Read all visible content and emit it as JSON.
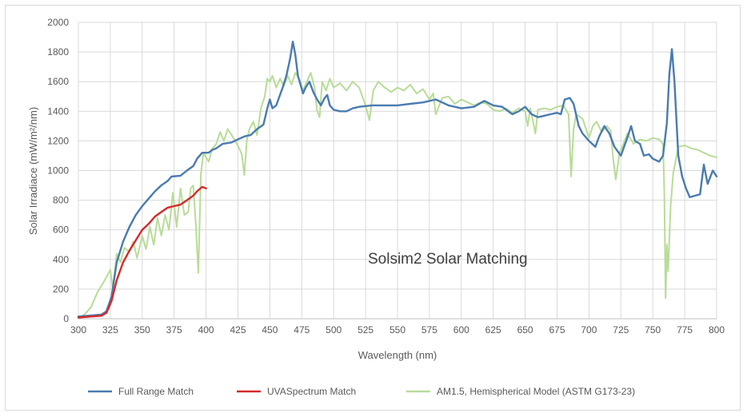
{
  "chart_data": {
    "type": "line",
    "title": "",
    "annotation": "Solsim2 Solar Matching",
    "xlabel": "Wavelength (nm)",
    "ylabel": "Solar Irradiace (mW/m²/nm)",
    "xlim": [
      300,
      800
    ],
    "ylim": [
      0,
      2000
    ],
    "x_ticks": [
      300,
      325,
      350,
      375,
      400,
      425,
      450,
      475,
      500,
      525,
      550,
      575,
      600,
      625,
      650,
      675,
      700,
      725,
      750,
      775,
      800
    ],
    "y_ticks": [
      0,
      200,
      400,
      600,
      800,
      1000,
      1200,
      1400,
      1600,
      1800,
      2000
    ],
    "grid": true,
    "legend_position": "bottom",
    "series": [
      {
        "name": "Full Range Match",
        "color": "#4a7bb0",
        "points": [
          [
            300,
            15
          ],
          [
            310,
            22
          ],
          [
            318,
            28
          ],
          [
            322,
            50
          ],
          [
            326,
            150
          ],
          [
            330,
            380
          ],
          [
            335,
            520
          ],
          [
            340,
            620
          ],
          [
            345,
            700
          ],
          [
            350,
            760
          ],
          [
            355,
            810
          ],
          [
            360,
            860
          ],
          [
            365,
            900
          ],
          [
            370,
            930
          ],
          [
            373,
            960
          ],
          [
            380,
            965
          ],
          [
            385,
            1000
          ],
          [
            390,
            1030
          ],
          [
            393,
            1080
          ],
          [
            397,
            1120
          ],
          [
            402,
            1120
          ],
          [
            405,
            1140
          ],
          [
            408,
            1150
          ],
          [
            413,
            1180
          ],
          [
            420,
            1190
          ],
          [
            425,
            1210
          ],
          [
            430,
            1230
          ],
          [
            435,
            1240
          ],
          [
            440,
            1280
          ],
          [
            445,
            1310
          ],
          [
            448,
            1420
          ],
          [
            450,
            1480
          ],
          [
            452,
            1420
          ],
          [
            455,
            1440
          ],
          [
            460,
            1560
          ],
          [
            463,
            1640
          ],
          [
            466,
            1760
          ],
          [
            468,
            1870
          ],
          [
            470,
            1780
          ],
          [
            472,
            1640
          ],
          [
            474,
            1580
          ],
          [
            476,
            1520
          ],
          [
            478,
            1560
          ],
          [
            481,
            1600
          ],
          [
            484,
            1530
          ],
          [
            487,
            1480
          ],
          [
            490,
            1440
          ],
          [
            493,
            1490
          ],
          [
            495,
            1510
          ],
          [
            497,
            1440
          ],
          [
            500,
            1410
          ],
          [
            505,
            1400
          ],
          [
            510,
            1400
          ],
          [
            515,
            1420
          ],
          [
            520,
            1430
          ],
          [
            530,
            1440
          ],
          [
            540,
            1440
          ],
          [
            550,
            1440
          ],
          [
            560,
            1450
          ],
          [
            570,
            1460
          ],
          [
            580,
            1480
          ],
          [
            590,
            1440
          ],
          [
            600,
            1420
          ],
          [
            610,
            1430
          ],
          [
            618,
            1470
          ],
          [
            625,
            1440
          ],
          [
            632,
            1430
          ],
          [
            640,
            1380
          ],
          [
            645,
            1400
          ],
          [
            650,
            1430
          ],
          [
            655,
            1380
          ],
          [
            660,
            1360
          ],
          [
            665,
            1370
          ],
          [
            670,
            1380
          ],
          [
            675,
            1390
          ],
          [
            678,
            1380
          ],
          [
            681,
            1480
          ],
          [
            685,
            1490
          ],
          [
            688,
            1450
          ],
          [
            692,
            1300
          ],
          [
            695,
            1250
          ],
          [
            700,
            1200
          ],
          [
            705,
            1160
          ],
          [
            708,
            1230
          ],
          [
            712,
            1300
          ],
          [
            716,
            1250
          ],
          [
            720,
            1160
          ],
          [
            725,
            1100
          ],
          [
            730,
            1220
          ],
          [
            733,
            1300
          ],
          [
            736,
            1200
          ],
          [
            740,
            1180
          ],
          [
            743,
            1100
          ],
          [
            747,
            1110
          ],
          [
            750,
            1080
          ],
          [
            755,
            1060
          ],
          [
            758,
            1100
          ],
          [
            761,
            1320
          ],
          [
            763,
            1650
          ],
          [
            765,
            1820
          ],
          [
            767,
            1600
          ],
          [
            770,
            1100
          ],
          [
            773,
            960
          ],
          [
            776,
            880
          ],
          [
            779,
            820
          ],
          [
            783,
            830
          ],
          [
            787,
            840
          ],
          [
            790,
            1040
          ],
          [
            793,
            910
          ],
          [
            797,
            1000
          ],
          [
            800,
            960
          ]
        ]
      },
      {
        "name": "UVASpectrum Match",
        "color": "#d42a2a",
        "points": [
          [
            300,
            8
          ],
          [
            310,
            15
          ],
          [
            318,
            20
          ],
          [
            322,
            40
          ],
          [
            326,
            120
          ],
          [
            330,
            260
          ],
          [
            335,
            380
          ],
          [
            340,
            460
          ],
          [
            345,
            530
          ],
          [
            350,
            600
          ],
          [
            355,
            640
          ],
          [
            360,
            690
          ],
          [
            365,
            720
          ],
          [
            370,
            750
          ],
          [
            375,
            760
          ],
          [
            380,
            770
          ],
          [
            385,
            800
          ],
          [
            390,
            830
          ],
          [
            393,
            860
          ],
          [
            397,
            890
          ],
          [
            400,
            880
          ]
        ]
      },
      {
        "name": "AM1.5, Hemispherical Model (ASTM G173-23)",
        "color": "#b8dc98",
        "points": [
          [
            300,
            5
          ],
          [
            305,
            30
          ],
          [
            310,
            80
          ],
          [
            315,
            180
          ],
          [
            320,
            250
          ],
          [
            325,
            330
          ],
          [
            327,
            200
          ],
          [
            330,
            440
          ],
          [
            333,
            380
          ],
          [
            336,
            480
          ],
          [
            340,
            450
          ],
          [
            343,
            520
          ],
          [
            346,
            410
          ],
          [
            350,
            560
          ],
          [
            353,
            470
          ],
          [
            356,
            620
          ],
          [
            359,
            500
          ],
          [
            362,
            680
          ],
          [
            365,
            560
          ],
          [
            368,
            700
          ],
          [
            371,
            600
          ],
          [
            374,
            850
          ],
          [
            377,
            620
          ],
          [
            380,
            880
          ],
          [
            383,
            700
          ],
          [
            386,
            720
          ],
          [
            388,
            880
          ],
          [
            390,
            900
          ],
          [
            392,
            640
          ],
          [
            394,
            310
          ],
          [
            396,
            980
          ],
          [
            398,
            1120
          ],
          [
            402,
            1060
          ],
          [
            405,
            1150
          ],
          [
            408,
            1180
          ],
          [
            411,
            1260
          ],
          [
            414,
            1200
          ],
          [
            417,
            1280
          ],
          [
            420,
            1240
          ],
          [
            423,
            1200
          ],
          [
            426,
            1150
          ],
          [
            428,
            1110
          ],
          [
            430,
            970
          ],
          [
            432,
            1210
          ],
          [
            434,
            1280
          ],
          [
            437,
            1330
          ],
          [
            440,
            1240
          ],
          [
            443,
            1420
          ],
          [
            446,
            1500
          ],
          [
            448,
            1620
          ],
          [
            450,
            1600
          ],
          [
            452,
            1640
          ],
          [
            455,
            1560
          ],
          [
            458,
            1620
          ],
          [
            461,
            1570
          ],
          [
            464,
            1640
          ],
          [
            467,
            1580
          ],
          [
            470,
            1660
          ],
          [
            473,
            1620
          ],
          [
            476,
            1540
          ],
          [
            479,
            1600
          ],
          [
            482,
            1660
          ],
          [
            485,
            1560
          ],
          [
            487,
            1400
          ],
          [
            489,
            1360
          ],
          [
            491,
            1600
          ],
          [
            494,
            1540
          ],
          [
            497,
            1620
          ],
          [
            500,
            1560
          ],
          [
            505,
            1590
          ],
          [
            510,
            1540
          ],
          [
            515,
            1600
          ],
          [
            520,
            1560
          ],
          [
            525,
            1440
          ],
          [
            528,
            1340
          ],
          [
            531,
            1540
          ],
          [
            535,
            1600
          ],
          [
            540,
            1560
          ],
          [
            545,
            1530
          ],
          [
            550,
            1560
          ],
          [
            555,
            1540
          ],
          [
            560,
            1580
          ],
          [
            565,
            1520
          ],
          [
            570,
            1550
          ],
          [
            575,
            1480
          ],
          [
            578,
            1520
          ],
          [
            580,
            1380
          ],
          [
            585,
            1490
          ],
          [
            590,
            1500
          ],
          [
            595,
            1450
          ],
          [
            600,
            1480
          ],
          [
            605,
            1460
          ],
          [
            610,
            1440
          ],
          [
            615,
            1460
          ],
          [
            620,
            1450
          ],
          [
            625,
            1410
          ],
          [
            630,
            1400
          ],
          [
            635,
            1420
          ],
          [
            640,
            1390
          ],
          [
            645,
            1420
          ],
          [
            650,
            1400
          ],
          [
            652,
            1300
          ],
          [
            654,
            1420
          ],
          [
            656,
            1340
          ],
          [
            658,
            1250
          ],
          [
            660,
            1410
          ],
          [
            665,
            1420
          ],
          [
            670,
            1410
          ],
          [
            675,
            1430
          ],
          [
            680,
            1440
          ],
          [
            684,
            1380
          ],
          [
            686,
            960
          ],
          [
            688,
            1280
          ],
          [
            690,
            1380
          ],
          [
            695,
            1350
          ],
          [
            700,
            1220
          ],
          [
            703,
            1300
          ],
          [
            706,
            1330
          ],
          [
            710,
            1260
          ],
          [
            714,
            1300
          ],
          [
            717,
            1270
          ],
          [
            719,
            1080
          ],
          [
            721,
            940
          ],
          [
            724,
            1120
          ],
          [
            727,
            1180
          ],
          [
            730,
            1250
          ],
          [
            735,
            1180
          ],
          [
            740,
            1210
          ],
          [
            745,
            1200
          ],
          [
            750,
            1220
          ],
          [
            755,
            1210
          ],
          [
            758,
            1180
          ],
          [
            759,
            860
          ],
          [
            760,
            140
          ],
          [
            761,
            500
          ],
          [
            762,
            320
          ],
          [
            764,
            760
          ],
          [
            766,
            980
          ],
          [
            770,
            1160
          ],
          [
            775,
            1170
          ],
          [
            780,
            1150
          ],
          [
            785,
            1140
          ],
          [
            790,
            1120
          ],
          [
            795,
            1100
          ],
          [
            800,
            1090
          ]
        ]
      }
    ]
  }
}
